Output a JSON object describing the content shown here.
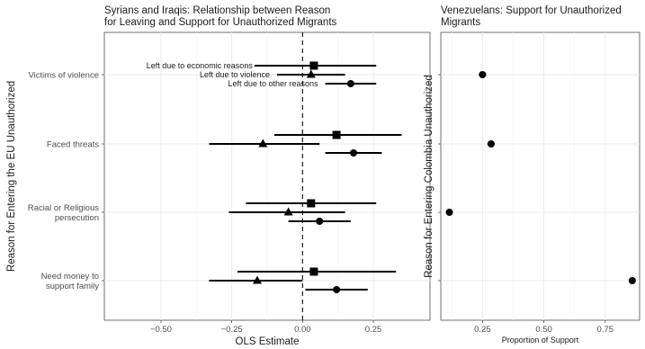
{
  "chart_data": [
    {
      "type": "scatter",
      "subtype": "coefficient-plot",
      "title": "Syrians and Iraqis: Relationship between Reason for Leaving and Support for Unauthorized Migrants",
      "title_lines": [
        "Syrians and Iraqis: Relationship between Reason",
        "for Leaving and Support for Unauthorized Migrants"
      ],
      "xlabel": "OLS Estimate",
      "ylabel": "Reason for Entering the EU Unauthorized",
      "xlim": [
        -0.7,
        0.45
      ],
      "xticks": [
        -0.5,
        -0.25,
        0.0,
        0.25
      ],
      "xtick_labels": [
        "−0.50",
        "−0.25",
        "0.00",
        "0.25"
      ],
      "reference_line": 0,
      "grid": true,
      "categories": [
        {
          "key": "victims",
          "lines": [
            "Victims of violence"
          ]
        },
        {
          "key": "threats",
          "lines": [
            "Faced threats"
          ]
        },
        {
          "key": "persecution",
          "lines": [
            "Racial or Religious",
            "persecution"
          ]
        },
        {
          "key": "money",
          "lines": [
            "Need money to",
            "support family"
          ]
        }
      ],
      "series": [
        {
          "name": "Left due to economic reasons",
          "marker": "square",
          "estimates": [
            0.04,
            0.12,
            0.03,
            0.04
          ],
          "lower": [
            -0.17,
            -0.1,
            -0.2,
            -0.23
          ],
          "upper": [
            0.26,
            0.35,
            0.26,
            0.33
          ]
        },
        {
          "name": "Left due to violence",
          "marker": "triangle",
          "estimates": [
            0.03,
            -0.14,
            -0.05,
            -0.16
          ],
          "lower": [
            -0.09,
            -0.33,
            -0.26,
            -0.33
          ],
          "upper": [
            0.15,
            0.06,
            0.15,
            0.0
          ]
        },
        {
          "name": "Left due to other reasons",
          "marker": "circle",
          "estimates": [
            0.17,
            0.18,
            0.06,
            0.12
          ],
          "lower": [
            0.08,
            0.08,
            -0.05,
            0.01
          ],
          "upper": [
            0.26,
            0.28,
            0.17,
            0.23
          ]
        }
      ]
    },
    {
      "type": "scatter",
      "subtype": "point-estimate",
      "title": "Venezuelans: Support for Unauthorized Migrants",
      "title_lines": [
        "Venezuelans: Support for Unauthorized",
        "Migrants"
      ],
      "xlabel": "Proportion of Support",
      "ylabel": "Reason for Entering Colombia Unauthorized",
      "xlim": [
        0.08,
        0.89
      ],
      "xticks": [
        0.25,
        0.5,
        0.75
      ],
      "xtick_labels": [
        "0.25",
        "0.50",
        "0.75"
      ],
      "grid": true,
      "estimates": [
        0.25,
        0.285,
        0.115,
        0.86
      ],
      "lower": [
        0.235,
        0.27,
        0.108,
        0.852
      ],
      "upper": [
        0.265,
        0.3,
        0.122,
        0.868
      ]
    }
  ]
}
